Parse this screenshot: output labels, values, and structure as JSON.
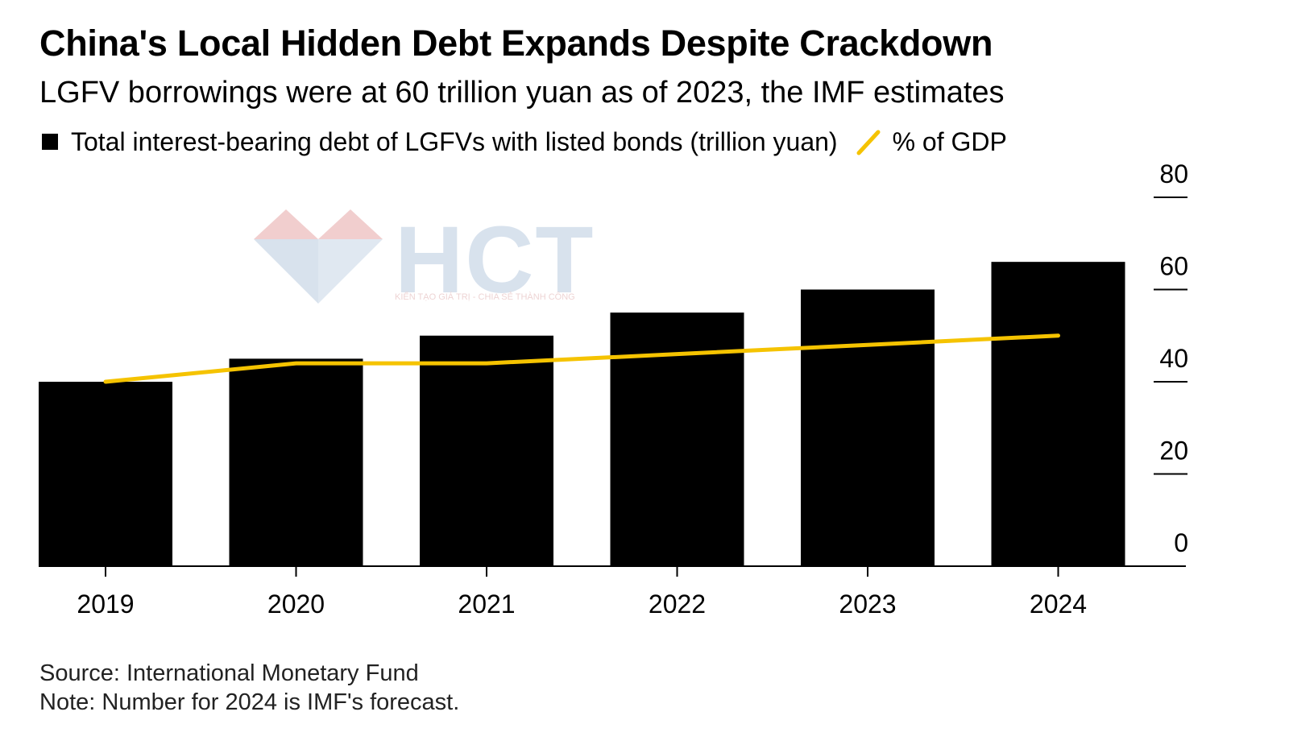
{
  "title": "China's Local Hidden Debt Expands Despite Crackdown",
  "subtitle": "LGFV borrowings were at 60 trillion yuan as of 2023, the IMF estimates",
  "legend": {
    "bars_label": "Total interest-bearing debt of LGFVs with listed bonds (trillion yuan)",
    "line_label": "% of GDP"
  },
  "colors": {
    "bars": "#000000",
    "line": "#f5c300",
    "axis": "#000000"
  },
  "watermark": {
    "brand": "HCT",
    "tagline": "KIẾN TẠO GIÁ TRỊ - CHIA SẺ THÀNH CÔNG"
  },
  "chart_data": {
    "type": "bar",
    "title": "China's Local Hidden Debt Expands Despite Crackdown",
    "xlabel": "",
    "ylabel": "",
    "categories": [
      "2019",
      "2020",
      "2021",
      "2022",
      "2023",
      "2024"
    ],
    "series": [
      {
        "name": "Total interest-bearing debt of LGFVs with listed bonds (trillion yuan)",
        "type": "bar",
        "values": [
          40,
          45,
          50,
          55,
          60,
          66
        ]
      },
      {
        "name": "% of GDP",
        "type": "line",
        "values": [
          40,
          44,
          44,
          46,
          48,
          50
        ]
      }
    ],
    "ylim": [
      0,
      80
    ],
    "yticks": [
      0,
      20,
      40,
      60,
      80
    ],
    "y_axis_side": "right",
    "grid": false,
    "legend_position": "top-left"
  },
  "footer": {
    "source": "Source: International Monetary Fund",
    "note": "Note: Number for 2024 is IMF's forecast."
  }
}
